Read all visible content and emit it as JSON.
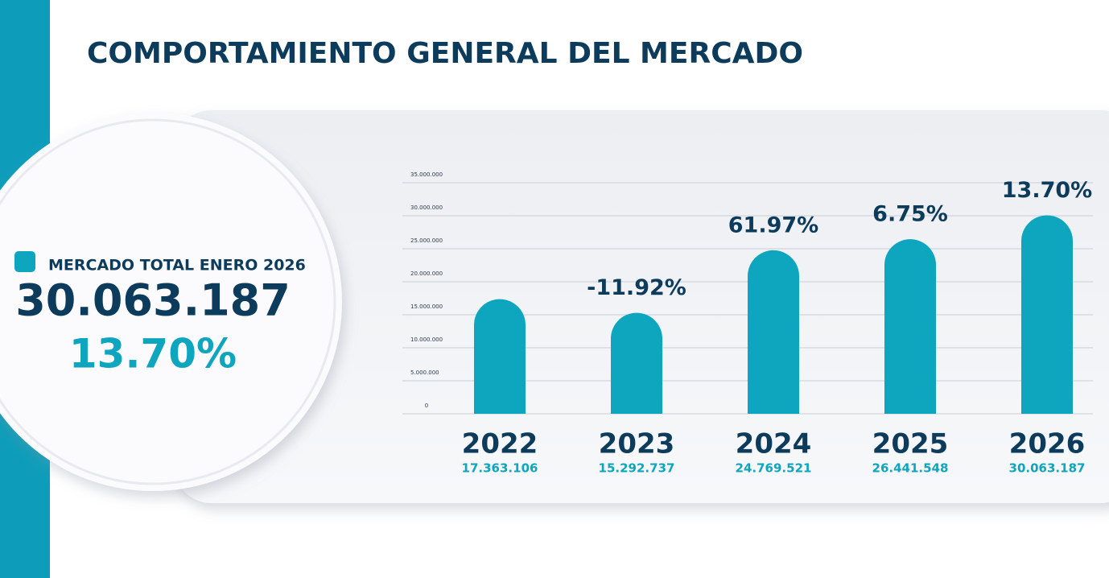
{
  "chart_data": {
    "type": "bar",
    "title": "COMPORTAMIENTO GENERAL DEL MERCADO",
    "categories": [
      "2022",
      "2023",
      "2024",
      "2025",
      "2026"
    ],
    "values": [
      17363106,
      15292737,
      24769521,
      26441548,
      30063187
    ],
    "value_labels": [
      "17.363.106",
      "15.292.737",
      "24.769.521",
      "26.441.548",
      "30.063.187"
    ],
    "growth_labels": [
      null,
      "-11.92%",
      "61.97%",
      "6.75%",
      "13.70%"
    ],
    "color": "#0ea5bf",
    "ylim": [
      0,
      35000000
    ],
    "yticks": [
      0,
      {
        "value": 5000000,
        "label": "5.000.000"
      },
      {
        "value": 10000000,
        "label": "10.000.000"
      },
      {
        "value": 15000000,
        "label": "15.000.000"
      },
      {
        "value": 20000000,
        "label": "20.000.000"
      },
      {
        "value": 25000000,
        "label": "25.000.000"
      },
      {
        "value": 30000000,
        "label": "30.000.000"
      },
      {
        "value": 35000000,
        "label": "35.000.000"
      }
    ],
    "grid": true,
    "summary": {
      "label": "MERCADO TOTAL ENERO 2026",
      "value": "30.063.187",
      "change": "13.70%"
    }
  }
}
